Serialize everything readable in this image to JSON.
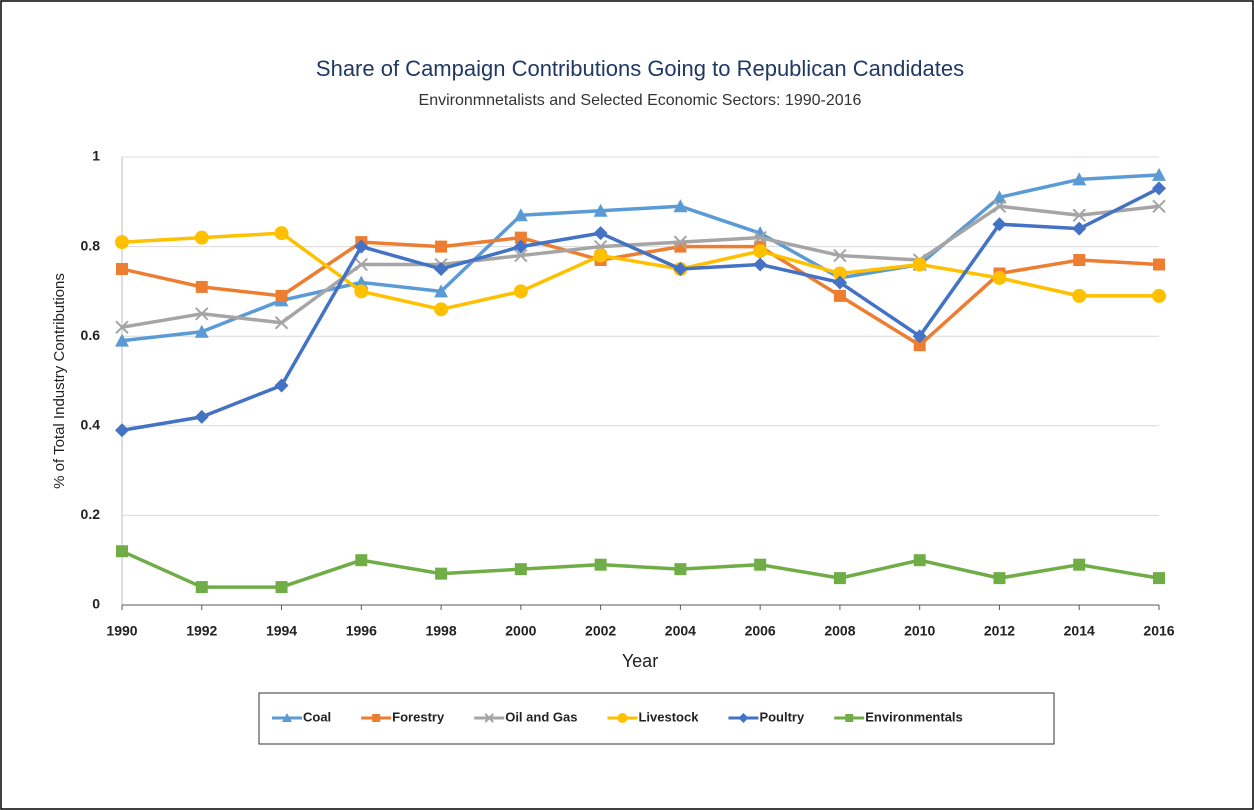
{
  "chart_data": {
    "type": "line",
    "title": "Share of Campaign Contributions Going to Republican Candidates",
    "subtitle": "Environmnetalists and Selected Economic Sectors: 1990-2016",
    "xlabel": "Year",
    "ylabel": "% of Total Industry Contributions",
    "x": [
      1990,
      1992,
      1994,
      1996,
      1998,
      2000,
      2002,
      2004,
      2006,
      2008,
      2010,
      2012,
      2014,
      2016
    ],
    "xlim": [
      1990,
      2016
    ],
    "xticks": [
      1990,
      1992,
      1994,
      1996,
      1998,
      2000,
      2002,
      2004,
      2006,
      2008,
      2010,
      2012,
      2014,
      2016
    ],
    "ylim": [
      0,
      1
    ],
    "yticks": [
      0,
      0.2,
      0.4,
      0.6,
      0.8,
      1
    ],
    "grid": true,
    "legend": "bottom",
    "series": [
      {
        "name": "Coal",
        "color": "#5b9bd5",
        "marker": "triangle",
        "values": [
          0.59,
          0.61,
          0.68,
          0.72,
          0.7,
          0.87,
          0.88,
          0.89,
          0.83,
          0.73,
          0.76,
          0.91,
          0.95,
          0.96
        ]
      },
      {
        "name": "Forestry",
        "color": "#ed7d31",
        "marker": "square",
        "values": [
          0.75,
          0.71,
          0.69,
          0.81,
          0.8,
          0.82,
          0.77,
          0.8,
          0.8,
          0.69,
          0.58,
          0.74,
          0.77,
          0.76
        ]
      },
      {
        "name": "Oil and Gas",
        "color": "#a5a5a5",
        "marker": "x",
        "values": [
          0.62,
          0.65,
          0.63,
          0.76,
          0.76,
          0.78,
          0.8,
          0.81,
          0.82,
          0.78,
          0.77,
          0.89,
          0.87,
          0.89
        ]
      },
      {
        "name": "Livestock",
        "color": "#ffc000",
        "marker": "circle",
        "values": [
          0.81,
          0.82,
          0.83,
          0.7,
          0.66,
          0.7,
          0.78,
          0.75,
          0.79,
          0.74,
          0.76,
          0.73,
          0.69,
          0.69
        ]
      },
      {
        "name": "Poultry",
        "color": "#4472c4",
        "marker": "diamond",
        "values": [
          0.39,
          0.42,
          0.49,
          0.8,
          0.75,
          0.8,
          0.83,
          0.75,
          0.76,
          0.72,
          0.6,
          0.85,
          0.84,
          0.93
        ]
      },
      {
        "name": "Environmentals",
        "color": "#70ad47",
        "marker": "square",
        "values": [
          0.12,
          0.04,
          0.04,
          0.1,
          0.07,
          0.08,
          0.09,
          0.08,
          0.09,
          0.06,
          0.1,
          0.06,
          0.09,
          0.06
        ]
      }
    ]
  }
}
